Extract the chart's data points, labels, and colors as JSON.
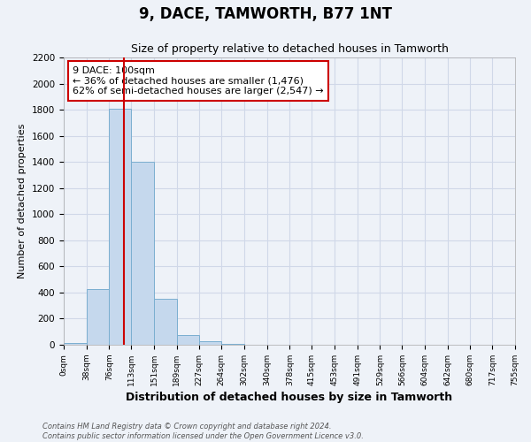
{
  "title": "9, DACE, TAMWORTH, B77 1NT",
  "subtitle": "Size of property relative to detached houses in Tamworth",
  "xlabel": "Distribution of detached houses by size in Tamworth",
  "ylabel": "Number of detached properties",
  "bar_color": "#c5d8ed",
  "bar_edgecolor": "#7aaed0",
  "background_color": "#eef2f8",
  "grid_color": "#d0d8e8",
  "bin_edges": [
    0,
    38,
    76,
    113,
    151,
    189,
    227,
    264,
    302,
    340,
    378,
    415,
    453,
    491,
    529,
    566,
    604,
    642,
    680,
    717,
    755
  ],
  "bin_labels": [
    "0sqm",
    "38sqm",
    "76sqm",
    "113sqm",
    "151sqm",
    "189sqm",
    "227sqm",
    "264sqm",
    "302sqm",
    "340sqm",
    "378sqm",
    "415sqm",
    "453sqm",
    "491sqm",
    "529sqm",
    "566sqm",
    "604sqm",
    "642sqm",
    "680sqm",
    "717sqm",
    "755sqm"
  ],
  "bar_heights": [
    15,
    425,
    1810,
    1400,
    350,
    75,
    25,
    5,
    0,
    0,
    0,
    0,
    0,
    0,
    0,
    0,
    0,
    0,
    0,
    0
  ],
  "property_line_x": 100,
  "property_line_color": "#cc0000",
  "annotation_title": "9 DACE: 100sqm",
  "annotation_line1": "← 36% of detached houses are smaller (1,476)",
  "annotation_line2": "62% of semi-detached houses are larger (2,547) →",
  "annotation_box_edgecolor": "#cc0000",
  "annotation_box_facecolor": "#ffffff",
  "ylim": [
    0,
    2200
  ],
  "yticks": [
    0,
    200,
    400,
    600,
    800,
    1000,
    1200,
    1400,
    1600,
    1800,
    2000,
    2200
  ],
  "footer1": "Contains HM Land Registry data © Crown copyright and database right 2024.",
  "footer2": "Contains public sector information licensed under the Open Government Licence v3.0."
}
